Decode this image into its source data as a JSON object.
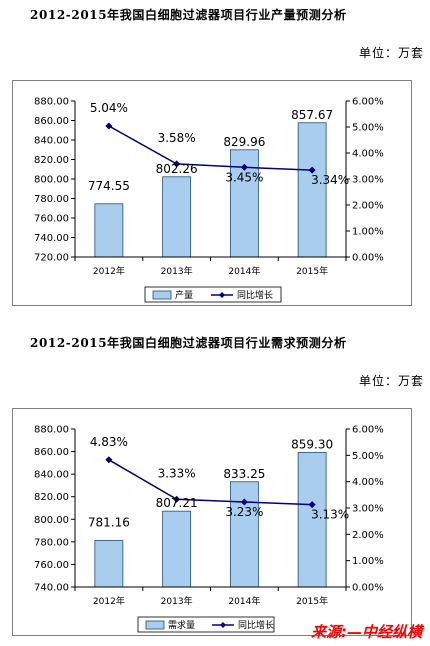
{
  "sections": [
    {
      "title": "2012-2015年我国白细胞过滤器项目行业产量预测分析",
      "unit": "单位：万套"
    },
    {
      "title": "2012-2015年我国白细胞过滤器项目行业需求预测分析",
      "unit": "单位：万套"
    }
  ],
  "source": "来源:—中经纵横",
  "colors": {
    "bar": "#a9cdee",
    "bar_edge": "#1f4e79",
    "line": "#000080",
    "plot_bg": "#ffffff"
  },
  "chart_data": [
    {
      "type": "bar",
      "categories": [
        "2012年",
        "2013年",
        "2014年",
        "2015年"
      ],
      "series": [
        {
          "name": "产量",
          "type": "bar",
          "axis": "left",
          "values": [
            774.55,
            802.26,
            829.96,
            857.67
          ],
          "labels": [
            "774.55",
            "802.26",
            "829.96",
            "857.67"
          ]
        },
        {
          "name": "同比增长",
          "type": "line",
          "axis": "right",
          "values": [
            5.04,
            3.58,
            3.45,
            3.34
          ],
          "labels": [
            "5.04%",
            "3.58%",
            "3.45%",
            "3.34%"
          ]
        }
      ],
      "ylim": [
        720,
        880
      ],
      "yticks": [
        "720.00",
        "740.00",
        "760.00",
        "780.00",
        "800.00",
        "820.00",
        "840.00",
        "860.00",
        "880.00"
      ],
      "y2lim": [
        0,
        6
      ],
      "y2ticks": [
        "0.00%",
        "1.00%",
        "2.00%",
        "3.00%",
        "4.00%",
        "5.00%",
        "6.00%"
      ],
      "legend": "bottom",
      "grid": false
    },
    {
      "type": "bar",
      "categories": [
        "2012年",
        "2013年",
        "2014年",
        "2015年"
      ],
      "series": [
        {
          "name": "需求量",
          "type": "bar",
          "axis": "left",
          "values": [
            781.16,
            807.21,
            833.25,
            859.3
          ],
          "labels": [
            "781.16",
            "807.21",
            "833.25",
            "859.30"
          ]
        },
        {
          "name": "同比增长",
          "type": "line",
          "axis": "right",
          "values": [
            4.83,
            3.33,
            3.23,
            3.13
          ],
          "labels": [
            "4.83%",
            "3.33%",
            "3.23%",
            "3.13%"
          ]
        }
      ],
      "ylim": [
        740,
        880
      ],
      "yticks": [
        "740.00",
        "760.00",
        "780.00",
        "800.00",
        "820.00",
        "840.00",
        "860.00",
        "880.00"
      ],
      "y2lim": [
        0,
        6
      ],
      "y2ticks": [
        "0.00%",
        "1.00%",
        "2.00%",
        "3.00%",
        "4.00%",
        "5.00%",
        "6.00%"
      ],
      "legend": "bottom",
      "grid": false
    }
  ]
}
